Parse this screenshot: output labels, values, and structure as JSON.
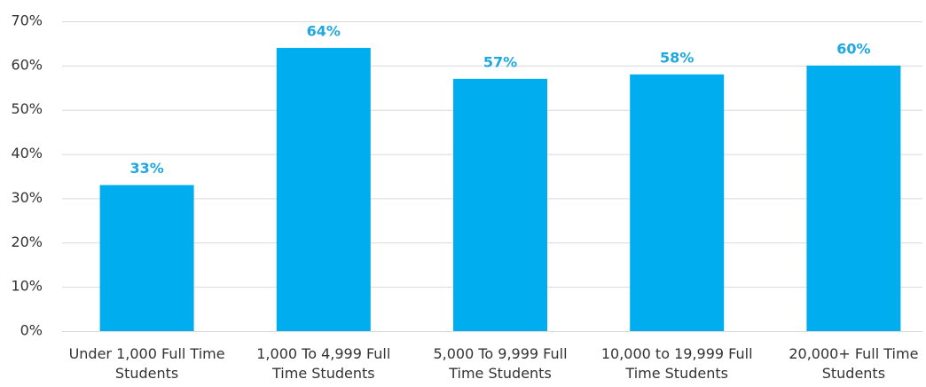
{
  "chart_data": {
    "type": "bar",
    "categories": [
      "Under 1,000 Full Time Students",
      "1,000 To 4,999 Full Time Students",
      "5,000 To 9,999 Full Time Students",
      "10,000 to 19,999 Full Time Students",
      "20,000+ Full Time Students"
    ],
    "values": [
      33,
      64,
      57,
      58,
      60
    ],
    "value_labels": [
      "33%",
      "64%",
      "57%",
      "58%",
      "60%"
    ],
    "color": "#00adef",
    "ylim": [
      0,
      70
    ],
    "yticks": [
      {
        "value": 0,
        "label": "0%"
      },
      {
        "value": 10,
        "label": "10%"
      },
      {
        "value": 20,
        "label": "20%"
      },
      {
        "value": 30,
        "label": "30%"
      },
      {
        "value": 40,
        "label": "40%"
      },
      {
        "value": 50,
        "label": "50%"
      },
      {
        "value": 60,
        "label": "60%"
      },
      {
        "value": 70,
        "label": "70%"
      }
    ],
    "grid": true
  }
}
